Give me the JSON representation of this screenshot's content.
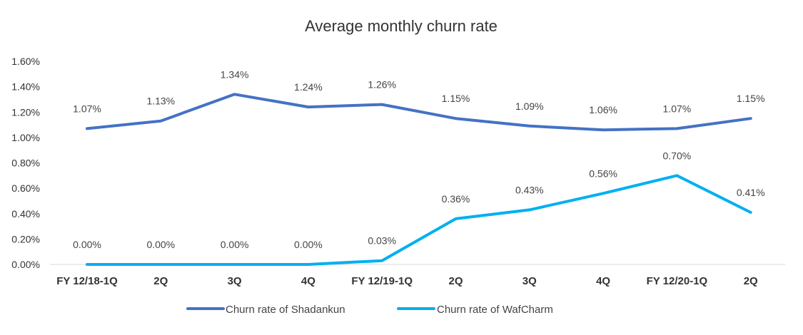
{
  "chart_data": {
    "type": "line",
    "title": "Average monthly churn rate",
    "xlabel": "",
    "ylabel": "",
    "categories": [
      "FY 12/18-1Q",
      "2Q",
      "3Q",
      "4Q",
      "FY 12/19-1Q",
      "2Q",
      "3Q",
      "4Q",
      "FY 12/20-1Q",
      "2Q"
    ],
    "y_ticks": [
      "0.00%",
      "0.20%",
      "0.40%",
      "0.60%",
      "0.80%",
      "1.00%",
      "1.20%",
      "1.40%",
      "1.60%"
    ],
    "ylim": [
      0,
      1.6
    ],
    "grid": false,
    "legend_position": "bottom",
    "series": [
      {
        "name": "Churn rate of Shadankun",
        "color": "#4472c4",
        "values": [
          1.07,
          1.13,
          1.34,
          1.24,
          1.26,
          1.15,
          1.09,
          1.06,
          1.07,
          1.15
        ],
        "labels": [
          "1.07%",
          "1.13%",
          "1.34%",
          "1.24%",
          "1.26%",
          "1.15%",
          "1.09%",
          "1.06%",
          "1.07%",
          "1.15%"
        ]
      },
      {
        "name": "Churn rate of WafCharm",
        "color": "#00b0f0",
        "values": [
          0.0,
          0.0,
          0.0,
          0.0,
          0.03,
          0.36,
          0.43,
          0.56,
          0.7,
          0.41
        ],
        "labels": [
          "0.00%",
          "0.00%",
          "0.00%",
          "0.00%",
          "0.03%",
          "0.36%",
          "0.43%",
          "0.56%",
          "0.70%",
          "0.41%"
        ]
      }
    ]
  }
}
